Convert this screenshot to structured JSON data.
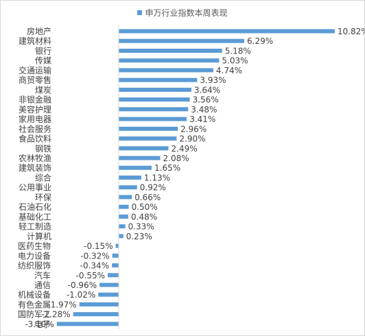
{
  "chart_data": {
    "type": "bar",
    "orientation": "horizontal",
    "legend": {
      "label": "申万行业指数本周表现",
      "position": "top"
    },
    "color": "#5b9bd5",
    "grid": false,
    "xlim": [
      -3.5,
      11.5
    ],
    "categories": [
      "房地产",
      "建筑材料",
      "银行",
      "传媒",
      "交通运输",
      "商贸零售",
      "煤炭",
      "非银金融",
      "美容护理",
      "家用电器",
      "社会服务",
      "食品饮料",
      "钢铁",
      "农林牧渔",
      "建筑装饰",
      "综合",
      "公用事业",
      "环保",
      "石油石化",
      "基础化工",
      "轻工制造",
      "计算机",
      "医药生物",
      "电力设备",
      "纺织服饰",
      "汽车",
      "通信",
      "机械设备",
      "有色金属",
      "国防军工",
      "电子"
    ],
    "values": [
      10.82,
      6.29,
      5.18,
      5.03,
      4.74,
      3.93,
      3.64,
      3.56,
      3.48,
      3.41,
      2.96,
      2.9,
      2.49,
      2.08,
      1.65,
      1.13,
      0.92,
      0.66,
      0.5,
      0.48,
      0.33,
      0.23,
      -0.15,
      -0.32,
      -0.34,
      -0.55,
      -0.96,
      -1.02,
      -1.97,
      -2.28,
      -3.1
    ],
    "value_labels": [
      "10.82%",
      "6.29%",
      "5.18%",
      "5.03%",
      "4.74%",
      "3.93%",
      "3.64%",
      "3.56%",
      "3.48%",
      "3.41%",
      "2.96%",
      "2.90%",
      "2.49%",
      "2.08%",
      "1.65%",
      "1.13%",
      "0.92%",
      "0.66%",
      "0.50%",
      "0.48%",
      "0.33%",
      "0.23%",
      "-0.15%",
      "-0.32%",
      "-0.34%",
      "-0.55%",
      "-0.96%",
      "-1.02%",
      "-1.97%",
      "-2.28%",
      "-3.10%"
    ]
  }
}
